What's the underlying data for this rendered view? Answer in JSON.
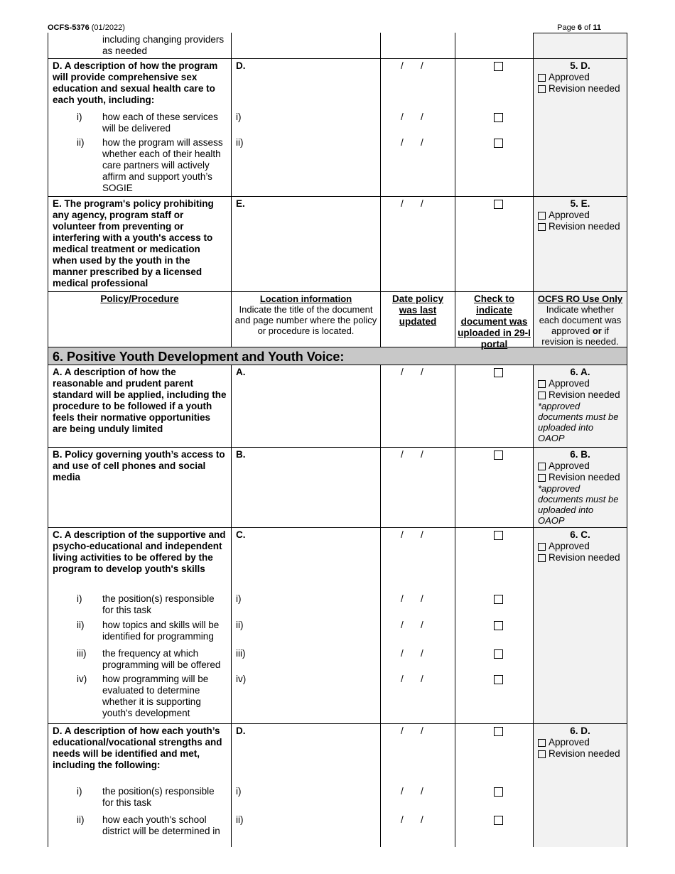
{
  "header": {
    "form_id": "OCFS-5376",
    "form_date": "(01/2022)",
    "page_prefix": "Page",
    "page": "6",
    "page_of": "of",
    "page_total": "11"
  },
  "table_header": {
    "policy": "Policy/Procedure",
    "location_title": "Location information",
    "location_desc": "Indicate the title of the document and page number where the policy or procedure is located.",
    "date": "Date policy was last updated",
    "check": "Check to indicate document was uploaded in 29-I portal",
    "ro_title": "OCFS RO Use Only",
    "ro_desc_1": "Indicate whether each document was approved ",
    "ro_desc_or": "or",
    "ro_desc_2": " if revision is needed."
  },
  "section6_title": "6. Positive Youth Development and Youth Voice:",
  "date_placeholder": [
    "/",
    "/"
  ],
  "options": [
    "Approved",
    "Revision needed"
  ],
  "note": "*approved documents must be uploaded into OAOP",
  "continuation": {
    "text": "including changing providers as needed"
  },
  "rows_before": [
    {
      "code": "5. D.",
      "parts": [
        {
          "text": "D.  A description of how the program will provide comprehensive sex education and sexual health care to each youth, including:",
          "loc": "D."
        },
        {
          "marker": "i)",
          "text": "how each of these services will be delivered",
          "loc": "i)"
        },
        {
          "marker": "ii)",
          "text": "how the program will assess whether each of their health care partners will actively affirm and support youth’s SOGIE",
          "loc": "ii)"
        }
      ]
    },
    {
      "code": "5. E.",
      "parts": [
        {
          "text": "E. The program's policy prohibiting any agency, program staff or volunteer from preventing or interfering with a youth's access to medical treatment or medication when used by the youth in the manner prescribed by a licensed medical professional",
          "loc": "E."
        }
      ]
    }
  ],
  "rows_after": [
    {
      "code": "6. A.",
      "note": true,
      "parts": [
        {
          "text": "A.  A description of how the reasonable and prudent parent standard will be applied, including the procedure to be followed if a youth feels their normative opportunities are being unduly limited",
          "loc": "A."
        }
      ]
    },
    {
      "code": "6. B.",
      "note": true,
      "parts": [
        {
          "text": "B. Policy governing youth’s access to and use of cell phones and social media",
          "loc": "B."
        }
      ]
    },
    {
      "code": "6. C.",
      "parts": [
        {
          "text": "C. A description of the supportive and psycho-educational and independent living activities to be offered by the program to develop youth's skills",
          "loc": "C."
        },
        {
          "marker": "i)",
          "text": "the position(s) responsible for this task",
          "loc": "i)"
        },
        {
          "marker": "ii)",
          "text": "how topics and skills will be identified for programming",
          "loc": "ii)"
        },
        {
          "marker": "iii)",
          "text": "the frequency at which programming will be offered",
          "loc": "iii)"
        },
        {
          "marker": "iv)",
          "text": "how programming will be evaluated to determine whether it is supporting youth's development",
          "loc": "iv)"
        }
      ]
    },
    {
      "code": "6. D.",
      "parts": [
        {
          "text": "D.  A description of how each youth’s educational/vocational strengths and needs will be identified and met, including the following:",
          "loc": "D."
        },
        {
          "marker": "i)",
          "text": "the position(s) responsible for this task",
          "loc": "i)"
        },
        {
          "marker": "ii)",
          "text": "how each youth's school district will be determined in",
          "loc": "ii)"
        }
      ]
    }
  ]
}
